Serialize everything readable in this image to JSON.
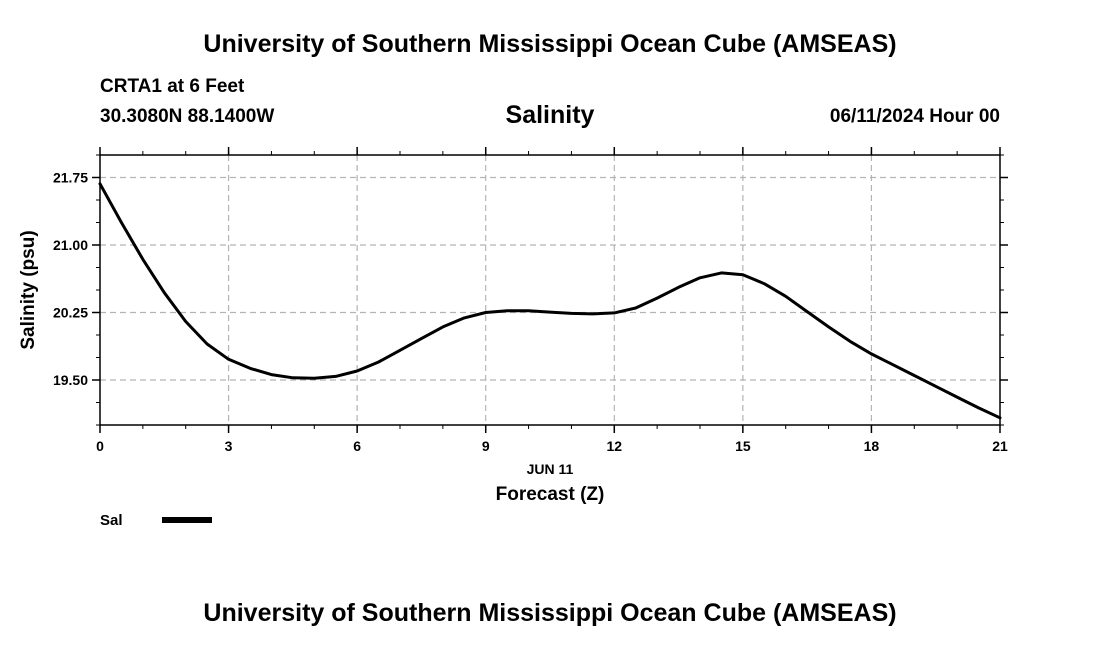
{
  "header": {
    "top_title": "University of Southern Mississippi Ocean Cube (AMSEAS)",
    "station": "CRTA1 at 6 Feet",
    "coords": "30.3080N  88.1400W",
    "datetime": "06/11/2024 Hour 00"
  },
  "footer": {
    "bottom_title": "University of Southern Mississippi Ocean Cube (AMSEAS)"
  },
  "chart_data": {
    "type": "line",
    "title": "Salinity",
    "ylabel": "Salinity (psu)",
    "xlabel": "Forecast (Z)",
    "date_label": "JUN 11",
    "xlim": [
      0,
      21
    ],
    "ylim": [
      19.0,
      22.0
    ],
    "x_ticks": [
      0,
      3,
      6,
      9,
      12,
      15,
      18,
      21
    ],
    "x_tick_labels": [
      "0",
      "3",
      "6",
      "9",
      "12",
      "15",
      "18",
      "21"
    ],
    "y_ticks": [
      19.5,
      20.25,
      21.0,
      21.75
    ],
    "y_tick_labels": [
      "19.50",
      "20.25",
      "21.00",
      "21.75"
    ],
    "grid": true,
    "line_color": "#000000",
    "grid_color": "#b4b4b4",
    "legend": [
      {
        "name": "Sal"
      }
    ],
    "series": [
      {
        "name": "Sal",
        "x": [
          0,
          0.5,
          1,
          1.5,
          2,
          2.5,
          3,
          3.5,
          4,
          4.5,
          5,
          5.5,
          6,
          6.5,
          7,
          7.5,
          8,
          8.5,
          9,
          9.5,
          10,
          10.5,
          11,
          11.5,
          12,
          12.5,
          13,
          13.5,
          14,
          14.5,
          15,
          15.5,
          16,
          16.5,
          17,
          17.5,
          18,
          18.5,
          19,
          19.5,
          20,
          20.5,
          21
        ],
        "values": [
          21.68,
          21.25,
          20.84,
          20.47,
          20.15,
          19.9,
          19.73,
          19.63,
          19.56,
          19.525,
          19.52,
          19.54,
          19.6,
          19.7,
          19.83,
          19.96,
          20.09,
          20.19,
          20.25,
          20.27,
          20.27,
          20.255,
          20.24,
          20.235,
          20.245,
          20.3,
          20.41,
          20.53,
          20.635,
          20.69,
          20.67,
          20.57,
          20.43,
          20.26,
          20.09,
          19.93,
          19.79,
          19.67,
          19.55,
          19.43,
          19.31,
          19.19,
          19.08
        ]
      }
    ]
  }
}
